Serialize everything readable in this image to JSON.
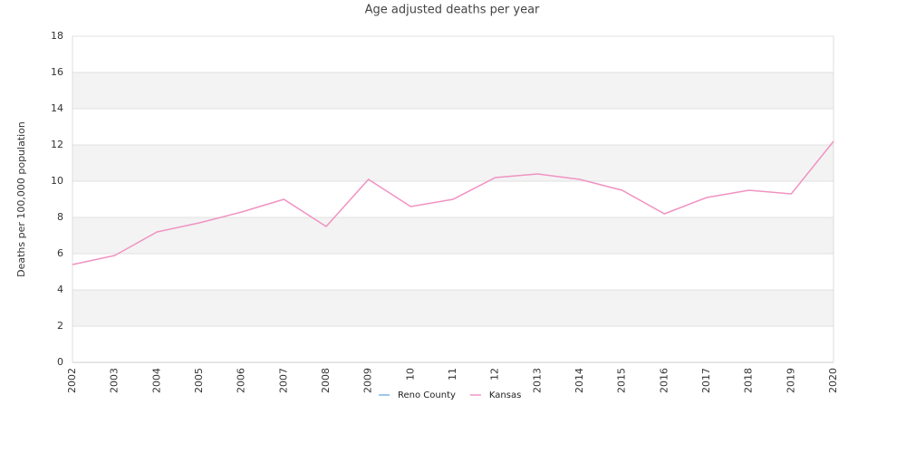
{
  "chart_data": {
    "type": "line",
    "title": "Age adjusted deaths per year",
    "y_label": "Deaths per 100,000 population",
    "categories": [
      "2002",
      "2003",
      "2004",
      "2005",
      "2006",
      "2007",
      "2008",
      "2009",
      "10",
      "11",
      "12",
      "2013",
      "2014",
      "2015",
      "2016",
      "2017",
      "2018",
      "2019",
      "2020"
    ],
    "series": [
      {
        "name": "Reno County",
        "color": "#7cb5ec",
        "values": [
          null,
          null,
          null,
          null,
          null,
          null,
          null,
          null,
          null,
          null,
          null,
          null,
          null,
          null,
          null,
          null,
          null,
          null,
          null
        ]
      },
      {
        "name": "Kansas",
        "color": "#f093c2",
        "values": [
          5.4,
          5.9,
          7.2,
          7.7,
          8.3,
          9.0,
          7.5,
          10.1,
          8.6,
          9.0,
          10.2,
          10.4,
          10.1,
          9.5,
          8.2,
          9.1,
          9.5,
          9.3,
          12.2
        ]
      }
    ],
    "ylim": [
      0,
      18
    ],
    "yticks": [
      0,
      2,
      4,
      6,
      8,
      10,
      12,
      14,
      16,
      18
    ],
    "grid": true,
    "legend": "bottom"
  }
}
